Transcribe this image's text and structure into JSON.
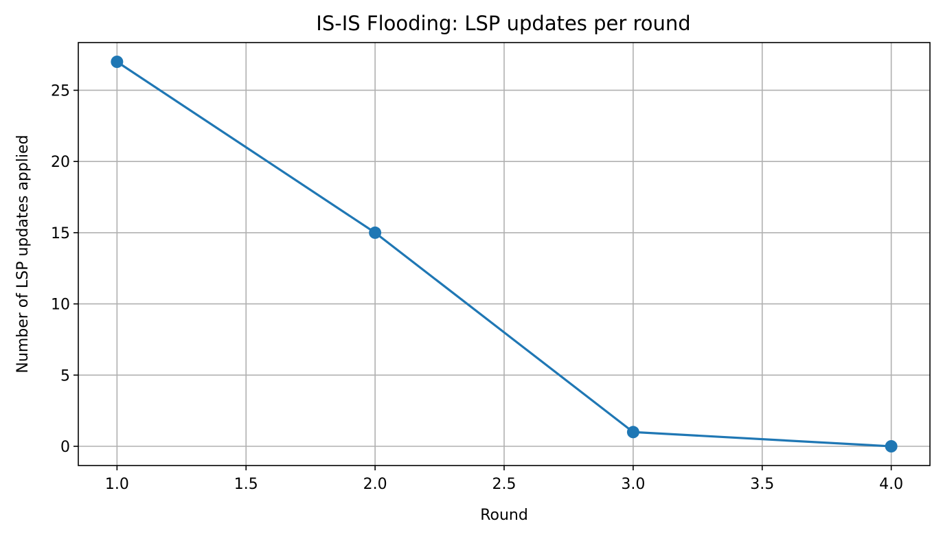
{
  "chart_data": {
    "type": "line",
    "title": "IS-IS Flooding: LSP updates per round",
    "xlabel": "Round",
    "ylabel": "Number of LSP updates applied",
    "xlim": [
      0.85,
      4.15
    ],
    "ylim": [
      -1.35,
      28.35
    ],
    "x_ticks": [
      1.0,
      1.5,
      2.0,
      2.5,
      3.0,
      3.5,
      4.0
    ],
    "x_tick_labels": [
      "1.0",
      "1.5",
      "2.0",
      "2.5",
      "3.0",
      "3.5",
      "4.0"
    ],
    "y_ticks": [
      0,
      5,
      10,
      15,
      20,
      25
    ],
    "y_tick_labels": [
      "0",
      "5",
      "10",
      "15",
      "20",
      "25"
    ],
    "grid": true,
    "series": [
      {
        "x": [
          1,
          2,
          3,
          4
        ],
        "values": [
          27,
          15,
          1,
          0
        ],
        "color": "#1f77b4",
        "marker": "circle"
      }
    ]
  }
}
